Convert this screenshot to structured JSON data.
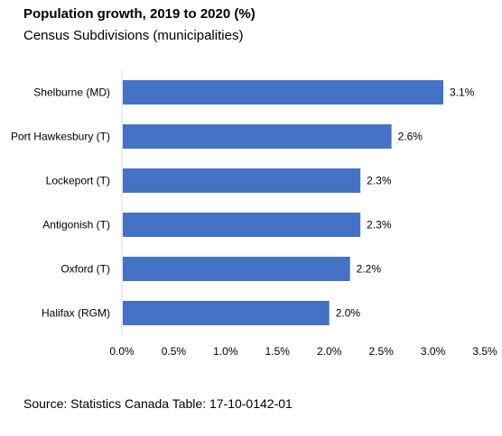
{
  "title": "Population growth, 2019 to 2020 (%)",
  "subtitle": "Census Subdivisions (municipalities)",
  "source": "Source: Statistics Canada Table: 17-10-0142-01",
  "colors": {
    "bar": "#4472C4",
    "axis": "#d9d9d9"
  },
  "chart_data": {
    "type": "bar",
    "orientation": "horizontal",
    "categories": [
      "Shelburne (MD)",
      "Port Hawkesbury (T)",
      "Lockeport (T)",
      "Antigonish (T)",
      "Oxford (T)",
      "Halifax (RGM)"
    ],
    "values": [
      3.1,
      2.6,
      2.3,
      2.3,
      2.2,
      2.0
    ],
    "value_labels": [
      "3.1%",
      "2.6%",
      "2.3%",
      "2.3%",
      "2.2%",
      "2.0%"
    ],
    "xlim": [
      0,
      3.5
    ],
    "xticks": [
      0,
      0.5,
      1.0,
      1.5,
      2.0,
      2.5,
      3.0,
      3.5
    ],
    "xtick_labels": [
      "0.0%",
      "0.5%",
      "1.0%",
      "1.5%",
      "2.0%",
      "2.5%",
      "3.0%",
      "3.5%"
    ],
    "grid": false,
    "legend": false
  }
}
